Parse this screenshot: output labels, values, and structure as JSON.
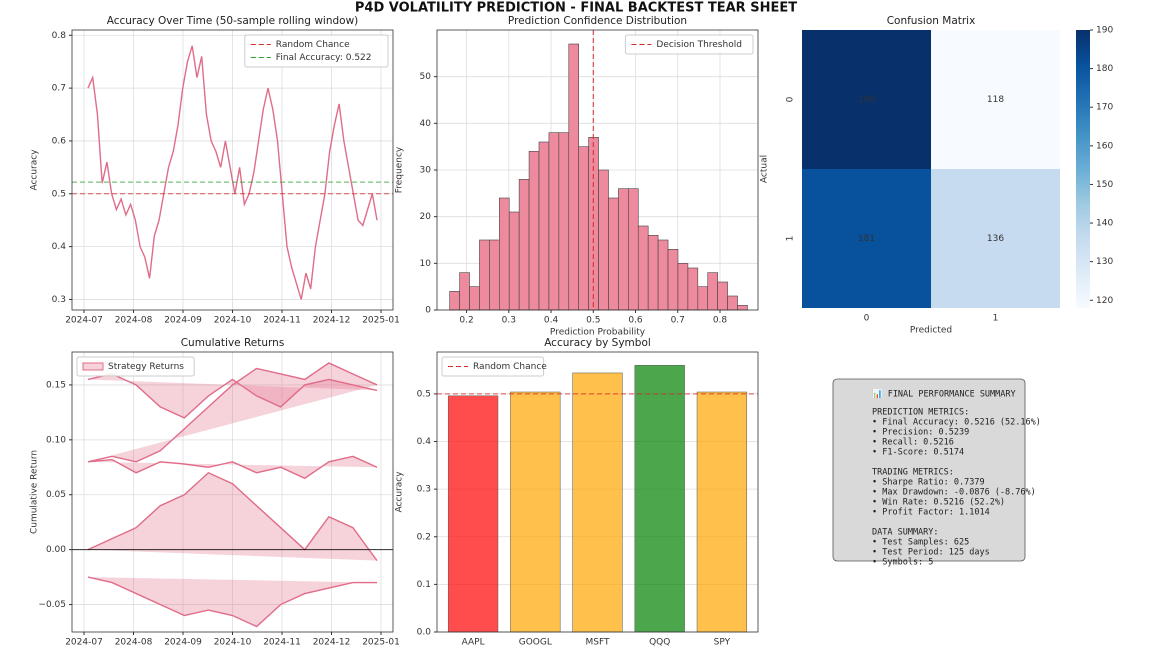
{
  "title": "P4D VOLATILITY PREDICTION - FINAL BACKTEST TEAR SHEET",
  "chart_data": [
    {
      "type": "line",
      "title": "Accuracy Over Time (50-sample rolling window)",
      "y_label": "Accuracy",
      "xticks": [
        "2024-07",
        "2024-08",
        "2024-09",
        "2024-10",
        "2024-11",
        "2024-12",
        "2025-01"
      ],
      "ylim": [
        0.28,
        0.81
      ],
      "yticks": [
        0.3,
        0.4,
        0.5,
        0.6,
        0.7,
        0.8
      ],
      "grid": true,
      "legend": "upper right",
      "series": [
        {
          "color": "#e06c88",
          "values": [
            0.7,
            0.72,
            0.65,
            0.52,
            0.56,
            0.5,
            0.47,
            0.49,
            0.46,
            0.48,
            0.45,
            0.4,
            0.38,
            0.34,
            0.42,
            0.45,
            0.5,
            0.55,
            0.58,
            0.63,
            0.7,
            0.75,
            0.78,
            0.72,
            0.76,
            0.65,
            0.6,
            0.58,
            0.55,
            0.6,
            0.55,
            0.5,
            0.55,
            0.48,
            0.5,
            0.54,
            0.6,
            0.66,
            0.7,
            0.66,
            0.6,
            0.5,
            0.4,
            0.36,
            0.33,
            0.3,
            0.35,
            0.32,
            0.4,
            0.45,
            0.5,
            0.58,
            0.63,
            0.67,
            0.6,
            0.55,
            0.5,
            0.45,
            0.44,
            0.47,
            0.5,
            0.45
          ]
        }
      ],
      "hlines": [
        {
          "name": "Random Chance",
          "value": 0.5,
          "color": "#d62728"
        },
        {
          "name": "Final Accuracy: 0.522",
          "value": 0.522,
          "color": "#2ca02c"
        }
      ]
    },
    {
      "type": "histogram",
      "title": "Prediction Confidence Distribution",
      "x_label": "Prediction Probability",
      "y_label": "Frequency",
      "bins": [
        0.16,
        0.1835,
        0.207,
        0.2305,
        0.254,
        0.2775,
        0.301,
        0.3245,
        0.348,
        0.3715,
        0.395,
        0.4185,
        0.442,
        0.4655,
        0.489,
        0.5125,
        0.536,
        0.5595,
        0.583,
        0.6065,
        0.63,
        0.6535,
        0.677,
        0.7005,
        0.724,
        0.7475,
        0.771,
        0.7945,
        0.818,
        0.8415,
        0.865
      ],
      "values": [
        4,
        8,
        5,
        15,
        15,
        24,
        21,
        28,
        34,
        36,
        38,
        38,
        57,
        35,
        37,
        30,
        24,
        26,
        26,
        18,
        16,
        15,
        13,
        10,
        9,
        5,
        8,
        6,
        3,
        1
      ],
      "color": "#ee8a9e",
      "xlim": [
        0.13,
        0.89
      ],
      "xticks": [
        0.2,
        0.3,
        0.4,
        0.5,
        0.6,
        0.7,
        0.8
      ],
      "ylim": [
        0,
        60
      ],
      "yticks": [
        0,
        10,
        20,
        30,
        40,
        50
      ],
      "grid": true,
      "legend": "upper right",
      "vlines": [
        {
          "name": "Decision Threshold",
          "value": 0.5,
          "color": "#d62728"
        }
      ]
    },
    {
      "type": "heatmap",
      "title": "Confusion Matrix",
      "x_label": "Predicted",
      "y_label": "Actual",
      "x_categories": [
        "0",
        "1"
      ],
      "y_categories": [
        "0",
        "1"
      ],
      "values": [
        [
          190,
          118
        ],
        [
          181,
          136
        ]
      ],
      "clim": [
        118,
        190
      ],
      "cticks": [
        120,
        130,
        140,
        150,
        160,
        170,
        180,
        190
      ],
      "colormap": "Blues"
    },
    {
      "type": "line",
      "title": "Cumulative Returns",
      "y_label": "Cumulative Return",
      "xticks": [
        "2024-07",
        "2024-08",
        "2024-09",
        "2024-10",
        "2024-11",
        "2024-12",
        "2025-01"
      ],
      "ylim": [
        -0.075,
        0.18
      ],
      "yticks": [
        {
          "value": -0.05,
          "label": "−0.05"
        },
        {
          "value": 0,
          "label": "0.00"
        },
        {
          "value": 0.05,
          "label": "0.05"
        },
        {
          "value": 0.1,
          "label": "0.10"
        },
        {
          "value": 0.15,
          "label": "0.15"
        }
      ],
      "grid": true,
      "legend": "upper left",
      "fill": true,
      "series": [
        {
          "name": "Strategy Returns",
          "color": "#e06c88",
          "values": [
            0.155,
            0.16,
            0.15,
            0.13,
            0.12,
            0.14,
            0.155,
            0.14,
            0.13,
            0.15,
            0.155,
            0.15,
            0.145,
            null,
            0.08,
            0.085,
            0.08,
            0.09,
            0.11,
            0.13,
            0.15,
            0.165,
            0.16,
            0.155,
            0.17,
            0.16,
            0.15,
            null,
            0.08,
            0.082,
            0.07,
            0.08,
            0.078,
            0.075,
            0.08,
            0.07,
            0.075,
            0.065,
            0.08,
            0.085,
            0.075,
            null,
            0,
            0.01,
            0.02,
            0.04,
            0.05,
            0.07,
            0.06,
            0.04,
            0.02,
            0,
            0.03,
            0.02,
            -0.01,
            null,
            -0.025,
            -0.03,
            -0.04,
            -0.05,
            -0.06,
            -0.055,
            -0.06,
            -0.07,
            -0.05,
            -0.04,
            -0.035,
            -0.03,
            -0.03
          ]
        }
      ],
      "hlines": [
        {
          "value": 0,
          "color": "#000000"
        }
      ]
    },
    {
      "type": "bar",
      "title": "Accuracy by Symbol",
      "y_label": "Accuracy",
      "categories": [
        "AAPL",
        "GOOGL",
        "MSFT",
        "QQQ",
        "SPY"
      ],
      "values": [
        0.496,
        0.504,
        0.544,
        0.56,
        0.504
      ],
      "colors": [
        "#ff0000",
        "#ffa500",
        "#ffa500",
        "#008000",
        "#ffa500"
      ],
      "ylim": [
        0,
        0.588
      ],
      "yticks": [
        {
          "value": 0,
          "label": "0.0"
        },
        0.1,
        0.2,
        0.3,
        0.4,
        0.5
      ],
      "grid": true,
      "legend": "upper left",
      "hlines": [
        {
          "name": "Random Chance",
          "value": 0.5,
          "color": "#d62728"
        }
      ]
    }
  ],
  "summary": {
    "title": "📊 FINAL PERFORMANCE SUMMARY",
    "sections": [
      {
        "heading": "PREDICTION METRICS:",
        "lines": [
          "• Final Accuracy: 0.5216 (52.16%)",
          "• Precision: 0.5239",
          "• Recall: 0.5216",
          "• F1-Score: 0.5174"
        ]
      },
      {
        "heading": "TRADING METRICS:",
        "lines": [
          "• Sharpe Ratio: 0.7379",
          "• Max Drawdown: -0.0876 (-8.76%)",
          "• Win Rate: 0.5216 (52.2%)",
          "• Profit Factor: 1.1014"
        ]
      },
      {
        "heading": "DATA SUMMARY:",
        "lines": [
          "• Test Samples: 625",
          "• Test Period: 125 days",
          "• Symbols: 5"
        ]
      }
    ]
  }
}
